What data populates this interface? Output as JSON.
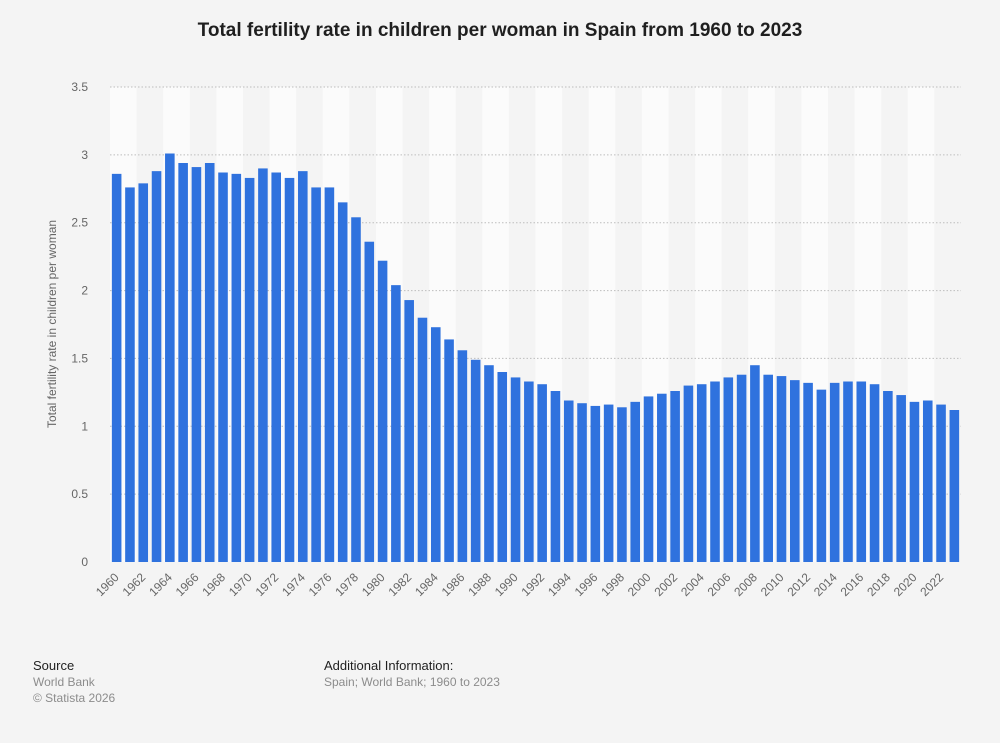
{
  "chart_data": {
    "type": "bar",
    "title": "Total fertility rate in children per woman in Spain from 1960 to 2023",
    "ylabel": "Total fertility rate in children per woman",
    "xlabel": "",
    "ylim": [
      0,
      3.5
    ],
    "yticks": [
      0,
      0.5,
      1,
      1.5,
      2,
      2.5,
      3,
      3.5
    ],
    "ytick_labels": [
      "0",
      "0.5",
      "1",
      "1.5",
      "2",
      "2.5",
      "3",
      "3.5"
    ],
    "grid": true,
    "bar_color": "#2f72de",
    "categories": [
      "1960",
      "1961",
      "1962",
      "1963",
      "1964",
      "1965",
      "1966",
      "1967",
      "1968",
      "1969",
      "1970",
      "1971",
      "1972",
      "1973",
      "1974",
      "1975",
      "1976",
      "1977",
      "1978",
      "1979",
      "1980",
      "1981",
      "1982",
      "1983",
      "1984",
      "1985",
      "1986",
      "1987",
      "1988",
      "1989",
      "1990",
      "1991",
      "1992",
      "1993",
      "1994",
      "1995",
      "1996",
      "1997",
      "1998",
      "1999",
      "2000",
      "2001",
      "2002",
      "2003",
      "2004",
      "2005",
      "2006",
      "2007",
      "2008",
      "2009",
      "2010",
      "2011",
      "2012",
      "2013",
      "2014",
      "2015",
      "2016",
      "2017",
      "2018",
      "2019",
      "2020",
      "2021",
      "2022",
      "2023"
    ],
    "values": [
      2.86,
      2.76,
      2.79,
      2.88,
      3.01,
      2.94,
      2.91,
      2.94,
      2.87,
      2.86,
      2.83,
      2.9,
      2.87,
      2.83,
      2.88,
      2.76,
      2.76,
      2.65,
      2.54,
      2.36,
      2.22,
      2.04,
      1.93,
      1.8,
      1.73,
      1.64,
      1.56,
      1.49,
      1.45,
      1.4,
      1.36,
      1.33,
      1.31,
      1.26,
      1.19,
      1.17,
      1.15,
      1.16,
      1.14,
      1.18,
      1.22,
      1.24,
      1.26,
      1.3,
      1.31,
      1.33,
      1.36,
      1.38,
      1.45,
      1.38,
      1.37,
      1.34,
      1.32,
      1.27,
      1.32,
      1.33,
      1.33,
      1.31,
      1.26,
      1.23,
      1.18,
      1.19,
      1.16,
      1.12
    ],
    "xtick_labels": [
      "1960",
      "1962",
      "1964",
      "1966",
      "1968",
      "1970",
      "1972",
      "1974",
      "1976",
      "1978",
      "1980",
      "1982",
      "1984",
      "1986",
      "1988",
      "1990",
      "1992",
      "1994",
      "1996",
      "1998",
      "2000",
      "2002",
      "2004",
      "2006",
      "2008",
      "2010",
      "2012",
      "2014",
      "2016",
      "2018",
      "2020",
      "2022"
    ]
  },
  "footer": {
    "source_heading": "Source",
    "source_name": "World Bank",
    "copyright": "© Statista 2026",
    "info_heading": "Additional Information:",
    "info_text": "Spain; World Bank; 1960 to 2023"
  }
}
